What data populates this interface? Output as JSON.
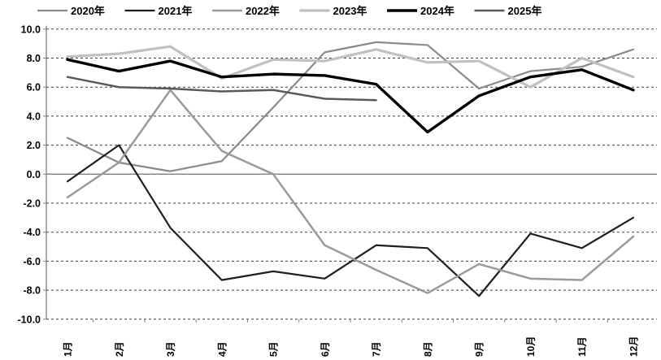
{
  "chart_data": {
    "type": "line",
    "title": "",
    "categories": [
      "1月",
      "2月",
      "3月",
      "4月",
      "5月",
      "6月",
      "7月",
      "8月",
      "9月",
      "10月",
      "11月",
      "12月"
    ],
    "series": [
      {
        "name": "2020年",
        "color": "#8a8a8a",
        "stroke_width": 2.2,
        "values": [
          2.5,
          0.8,
          0.2,
          0.9,
          4.6,
          8.4,
          9.1,
          8.9,
          5.9,
          7.1,
          7.4,
          8.6
        ]
      },
      {
        "name": "2021年",
        "color": "#1f1f1f",
        "stroke_width": 2.2,
        "values": [
          -0.5,
          2.0,
          -3.7,
          -7.3,
          -6.7,
          -7.2,
          -4.9,
          -5.1,
          -8.4,
          -4.1,
          -5.1,
          -3.0
        ]
      },
      {
        "name": "2022年",
        "color": "#9a9a9a",
        "stroke_width": 2.5,
        "values": [
          -1.6,
          0.8,
          5.8,
          1.6,
          0.0,
          -4.9,
          -6.6,
          -8.2,
          -6.2,
          -7.2,
          -7.3,
          -4.3
        ]
      },
      {
        "name": "2023年",
        "color": "#c0c0c0",
        "stroke_width": 3.2,
        "values": [
          8.1,
          8.3,
          8.8,
          6.6,
          7.9,
          7.8,
          8.6,
          7.7,
          7.8,
          6.0,
          8.0,
          6.7
        ]
      },
      {
        "name": "2024年",
        "color": "#000000",
        "stroke_width": 3.4,
        "values": [
          7.9,
          7.1,
          7.8,
          6.7,
          6.9,
          6.8,
          6.2,
          2.9,
          5.4,
          6.7,
          7.2,
          5.8
        ]
      },
      {
        "name": "2025年",
        "color": "#595959",
        "stroke_width": 2.5,
        "values": [
          6.7,
          6.0,
          5.9,
          5.7,
          5.8,
          5.2,
          5.1
        ]
      }
    ],
    "ylim": [
      -10.0,
      10.0
    ],
    "ytick_step": 2.0,
    "ytick_labels": [
      "10.0",
      "8.0",
      "6.0",
      "4.0",
      "2.0",
      "0.0",
      "-2.0",
      "-4.0",
      "-6.0",
      "-8.0",
      "-10.0"
    ],
    "grid": "horizontal-dashed",
    "zero_line": "solid",
    "legend_position": "top",
    "x_label_rotation": -90
  },
  "style_tokens": {
    "background": "#ffffff",
    "gridline_color": "#3d3d3d",
    "axis_color": "#7f7f7f",
    "text_color": "#000000"
  }
}
